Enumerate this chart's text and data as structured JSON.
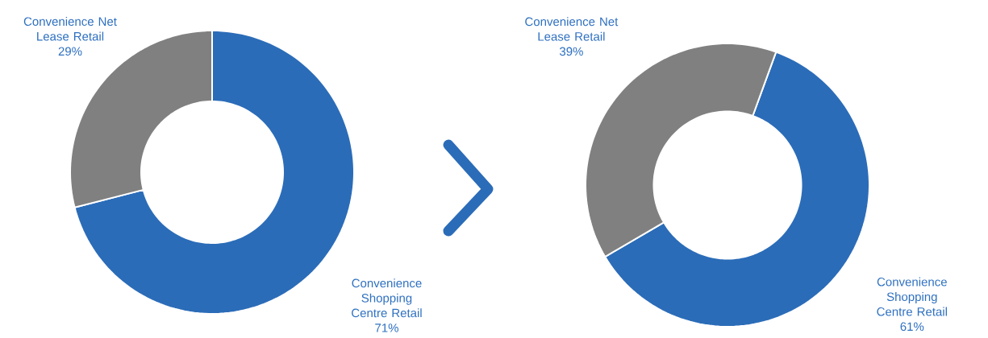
{
  "chart_data": [
    {
      "type": "donut",
      "categories": [
        "Convenience Shopping Centre Retail",
        "Convenience Net Lease Retail"
      ],
      "values": [
        71,
        29
      ],
      "colors": [
        "#2b6cb8",
        "#808080"
      ],
      "value_labels": [
        "71%",
        "29%"
      ]
    },
    {
      "type": "donut",
      "categories": [
        "Convenience Shopping Centre Retail",
        "Convenience Net Lease Retail"
      ],
      "values": [
        61,
        39
      ],
      "colors": [
        "#2b6cb8",
        "#808080"
      ],
      "value_labels": [
        "61%",
        "39%"
      ]
    }
  ]
}
